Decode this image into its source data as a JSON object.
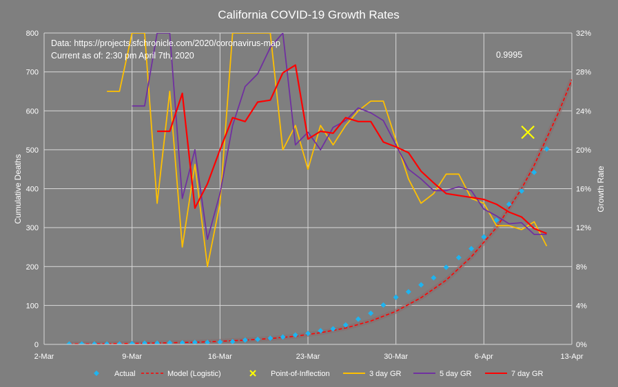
{
  "chart_data": {
    "type": "line",
    "title": "California COVID-19 Growth Rates",
    "ylabel": "Cumulative Deaths",
    "y2label": "Growth Rate",
    "annotations": {
      "source": "Data: https://projects.sfchronicle.com/2020/coronavirus-map",
      "current_as_of": "Current as of: 2:30 pm April 7th, 2020",
      "r_squared": "0.9995"
    },
    "x_ticks": [
      "2-Mar",
      "9-Mar",
      "16-Mar",
      "23-Mar",
      "30-Mar",
      "6-Apr",
      "13-Apr"
    ],
    "y_ticks": [
      "0",
      "100",
      "200",
      "300",
      "400",
      "500",
      "600",
      "700",
      "800"
    ],
    "y2_ticks": [
      "0%",
      "4%",
      "8%",
      "12%",
      "16%",
      "20%",
      "24%",
      "28%",
      "32%"
    ],
    "xlim_days": [
      0,
      42
    ],
    "ylim": [
      0,
      800
    ],
    "y2lim": [
      0,
      32
    ],
    "grid": true,
    "legend_position": "bottom",
    "legend": [
      "Actual",
      "Model (Logistic)",
      "Point-of-Inflection",
      "3 day GR",
      "5 day GR",
      "7 day GR"
    ],
    "colors": {
      "actual": "#1eb4f0",
      "model": "#ff0000",
      "poi": "#ffff00",
      "gr3": "#ffc000",
      "gr5": "#7030a0",
      "gr7": "#ff0000"
    },
    "actual": {
      "x": [
        2,
        3,
        4,
        5,
        6,
        7,
        8,
        9,
        10,
        11,
        12,
        13,
        14,
        15,
        16,
        17,
        18,
        19,
        20,
        21,
        22,
        23,
        24,
        25,
        26,
        27,
        28,
        29,
        30,
        31,
        32,
        33,
        34,
        35,
        36,
        37,
        38,
        39,
        40
      ],
      "y": [
        1,
        1,
        1,
        1,
        1,
        2,
        3,
        3,
        4,
        4,
        5,
        5,
        6,
        7,
        11,
        13,
        16,
        19,
        24,
        28,
        35,
        40,
        50,
        65,
        80,
        101,
        121,
        135,
        153,
        171,
        198,
        223,
        246,
        276,
        319,
        360,
        394,
        442,
        502
      ]
    },
    "model": {
      "x": [
        2,
        4,
        6,
        8,
        10,
        12,
        14,
        16,
        18,
        20,
        22,
        24,
        26,
        28,
        30,
        32,
        34,
        36,
        38,
        39,
        40,
        41,
        42
      ],
      "y": [
        1,
        1.5,
        2,
        3,
        4,
        5.5,
        8,
        11,
        15,
        21,
        30,
        42,
        60,
        85,
        120,
        165,
        225,
        300,
        400,
        460,
        530,
        600,
        680
      ]
    },
    "poi": {
      "x": 38.5,
      "y": 545
    },
    "gr3": {
      "x": [
        5,
        6,
        7,
        8,
        9,
        10,
        11,
        12,
        13,
        14,
        15,
        16,
        17,
        18,
        19,
        20,
        21,
        22,
        23,
        24,
        25,
        26,
        27,
        28,
        29,
        30,
        31,
        32,
        33,
        34,
        35,
        36,
        37,
        38,
        39,
        40
      ],
      "y": [
        26,
        26,
        32,
        32,
        14.5,
        26,
        10,
        18.5,
        8,
        14.5,
        32,
        32,
        32,
        32,
        20,
        22.5,
        18,
        22.5,
        20.5,
        22.5,
        24,
        25,
        25,
        21,
        17,
        14.5,
        15.5,
        17.5,
        17.5,
        15,
        14.5,
        12.2,
        12.2,
        11.8,
        12.6,
        10.1
      ]
    },
    "gr5": {
      "x": [
        7,
        8,
        9,
        10,
        11,
        12,
        13,
        14,
        15,
        16,
        17,
        18,
        19,
        20,
        21,
        22,
        23,
        24,
        25,
        26,
        27,
        28,
        29,
        30,
        31,
        32,
        33,
        34,
        35,
        36,
        37,
        38,
        39,
        40
      ],
      "y": [
        24.5,
        24.5,
        32,
        32,
        15,
        20,
        10.8,
        15.5,
        22.5,
        26.5,
        27.8,
        30.5,
        32,
        20.5,
        21.8,
        20,
        22.3,
        23,
        24.3,
        23.8,
        23,
        20.5,
        18,
        17,
        15.8,
        15.8,
        16.2,
        15.8,
        13.9,
        13.2,
        12.4,
        12.5,
        11.3,
        11.3
      ]
    },
    "gr7": {
      "x": [
        9,
        10,
        11,
        12,
        13,
        14,
        15,
        16,
        17,
        18,
        19,
        20,
        21,
        22,
        23,
        24,
        25,
        26,
        27,
        28,
        29,
        30,
        31,
        32,
        33,
        34,
        35,
        36,
        37,
        38,
        39,
        40
      ],
      "y": [
        21.9,
        21.9,
        25.8,
        14,
        16.5,
        20,
        23.3,
        22.9,
        24.9,
        25.1,
        27.9,
        28.7,
        21.1,
        21.9,
        21.7,
        23.3,
        22.9,
        22.9,
        20.8,
        20.3,
        19.7,
        17.8,
        16.6,
        15.5,
        15.3,
        15.1,
        14.9,
        14.4,
        13.6,
        13.1,
        11.9,
        11.4
      ]
    }
  }
}
